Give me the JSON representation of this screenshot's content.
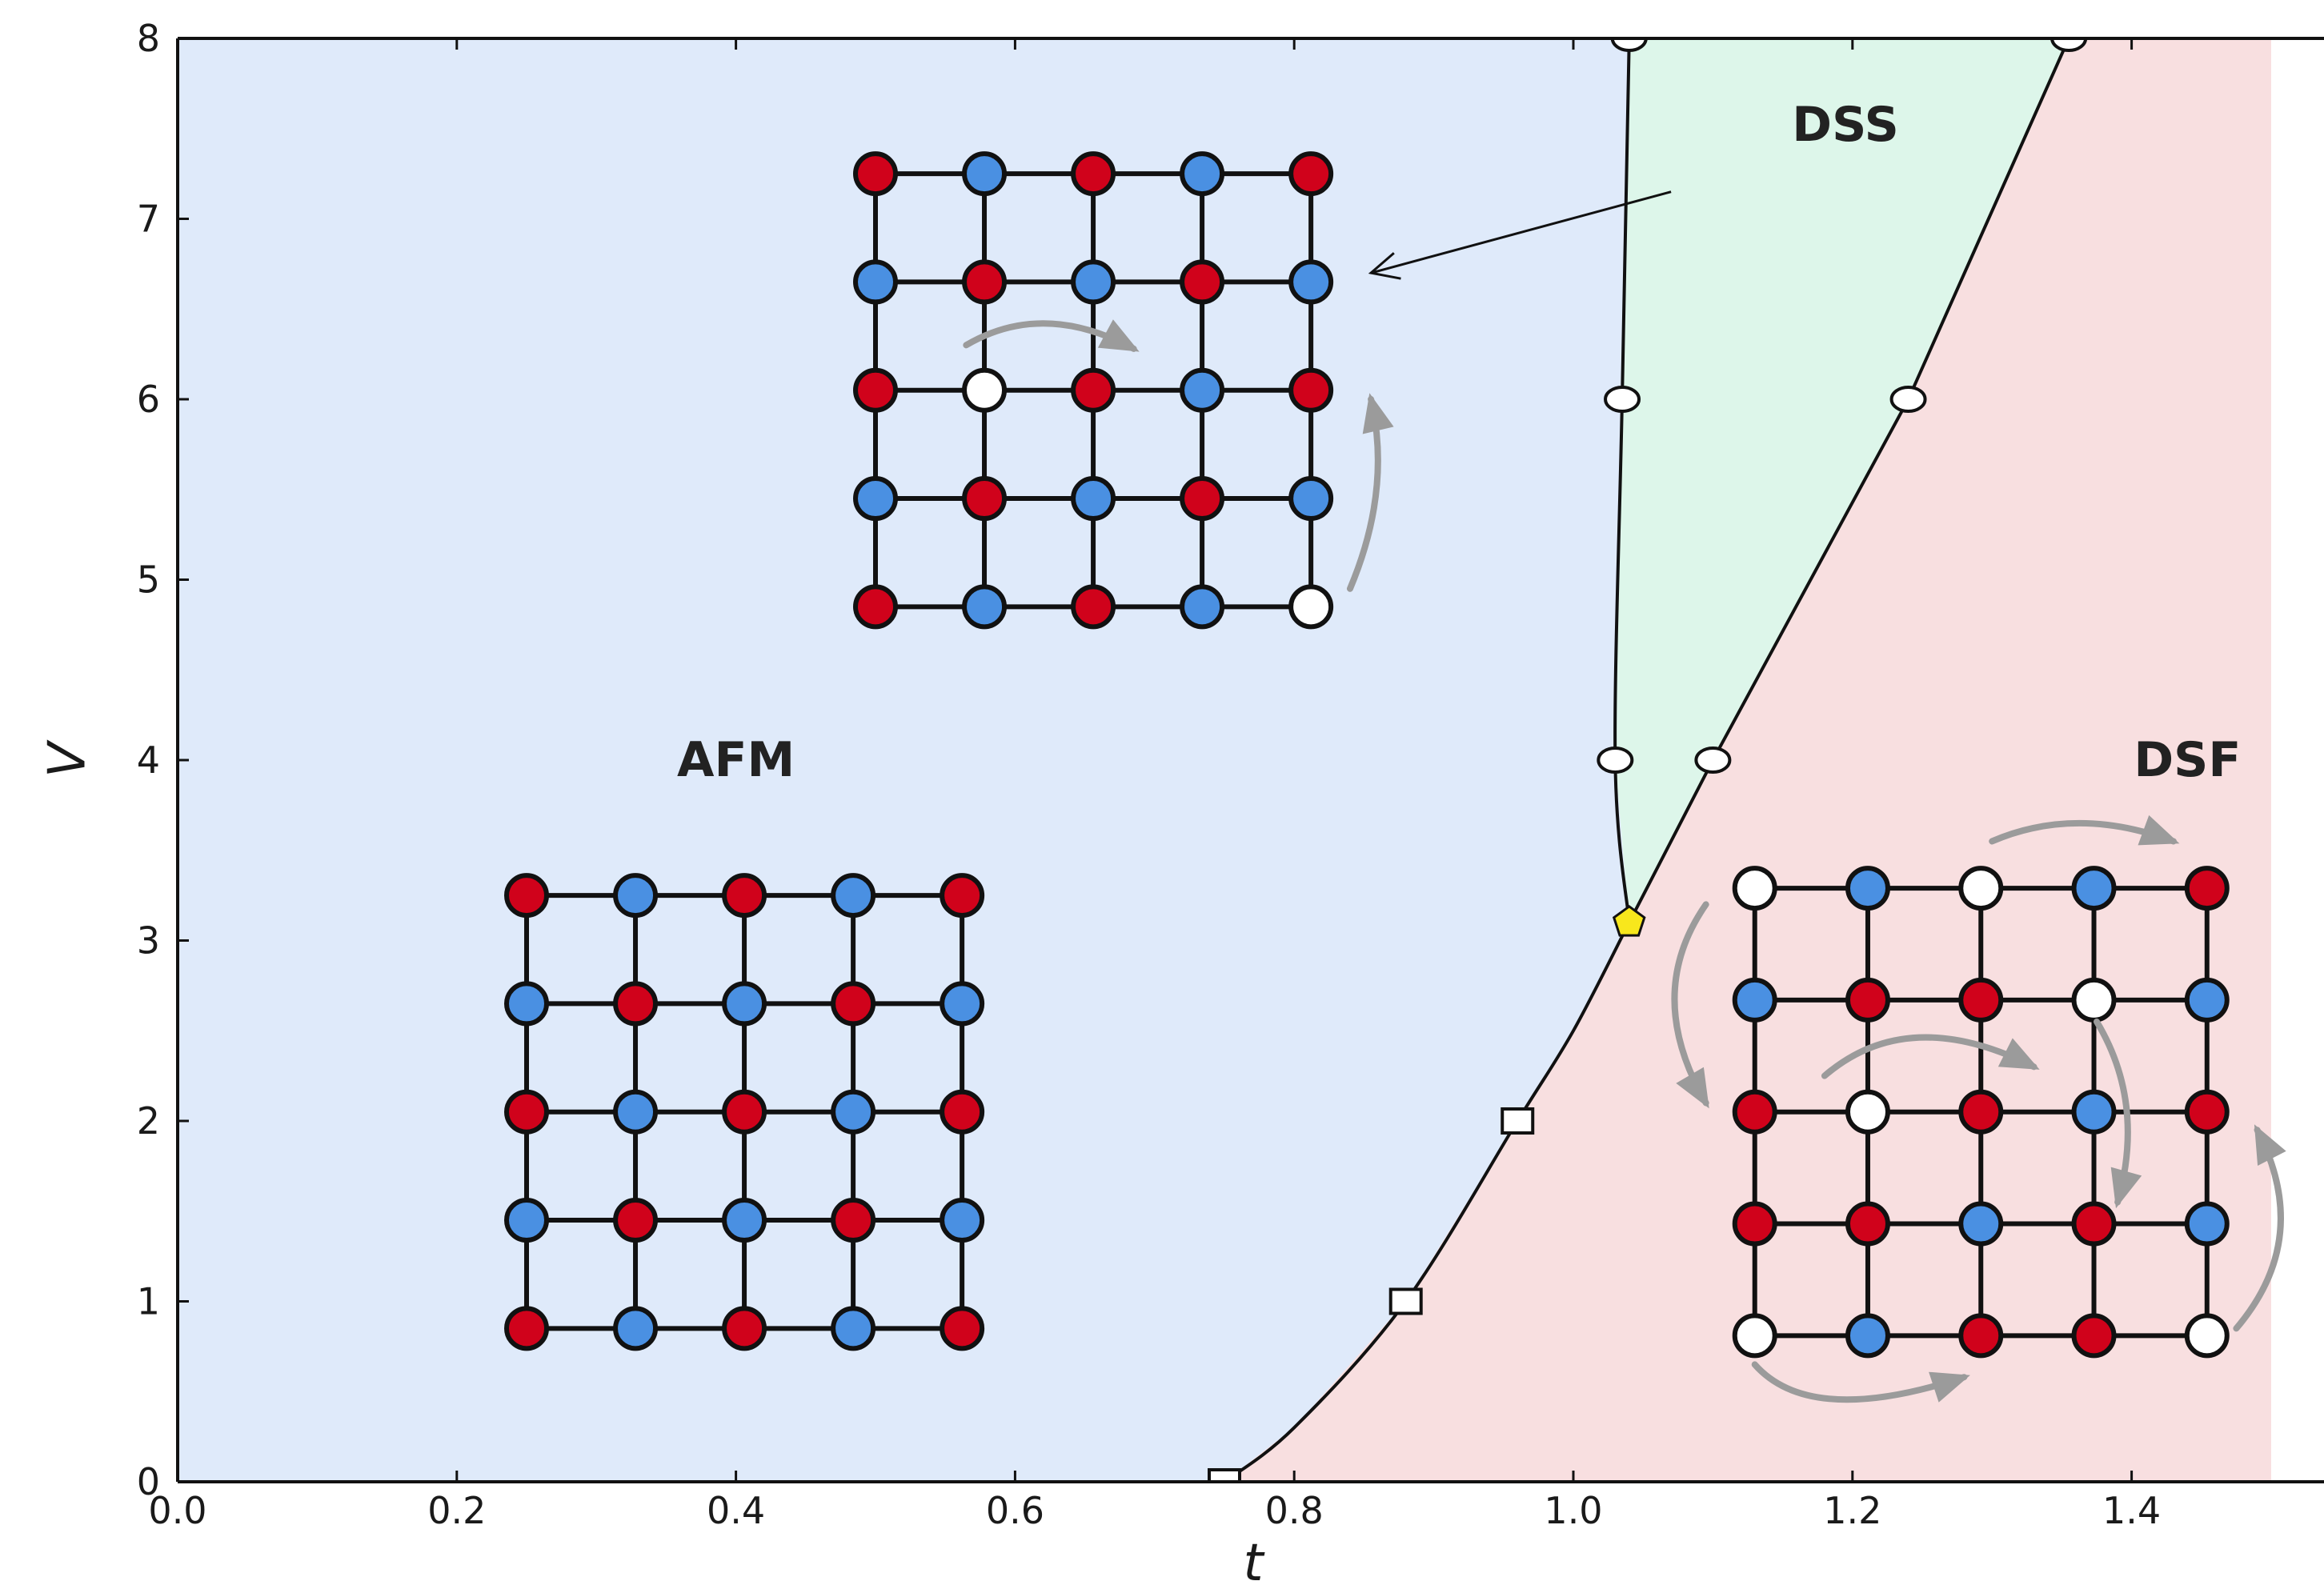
{
  "chart_data": {
    "type": "line",
    "title": "",
    "xlabel": "t",
    "ylabel": "V",
    "xlim": [
      0.0,
      1.5
    ],
    "ylim": [
      0,
      8
    ],
    "x_ticks": [
      "0.0",
      "0.2",
      "0.4",
      "0.6",
      "0.8",
      "1.0",
      "1.2",
      "1.4"
    ],
    "y_ticks": [
      "0",
      "1",
      "2",
      "3",
      "4",
      "5",
      "6",
      "7",
      "8"
    ],
    "grid": false,
    "colors": {
      "afm_region": "#dfeafa",
      "dss_region": "#ddf6ea",
      "dsf_region": "#f8dfe0",
      "red_site": "#d0021b",
      "blue_site": "#4a90e2",
      "empty_site": "#ffffff",
      "arrow": "#9b9b9b",
      "tricritical": "#f8e71c"
    },
    "regions": [
      {
        "label": "AFM",
        "label_at": [
          0.4,
          4.0
        ]
      },
      {
        "label": "DSS",
        "label_at": [
          1.195,
          7.52
        ]
      },
      {
        "label": "DSF",
        "label_at": [
          1.44,
          4.0
        ]
      }
    ],
    "boundaries": {
      "afm_dsf": [
        [
          0.75,
          0.0
        ],
        [
          0.8,
          0.3
        ],
        [
          0.88,
          1.0
        ],
        [
          0.96,
          2.0
        ],
        [
          1.0,
          2.5
        ],
        [
          1.04,
          3.1
        ]
      ],
      "afm_dss": [
        [
          1.04,
          3.1
        ],
        [
          1.03,
          4.0
        ],
        [
          1.035,
          6.0
        ],
        [
          1.04,
          8.0
        ]
      ],
      "dss_dsf": [
        [
          1.04,
          3.1
        ],
        [
          1.1,
          4.0
        ],
        [
          1.24,
          6.0
        ],
        [
          1.355,
          8.0
        ]
      ]
    },
    "markers": {
      "squares": [
        [
          0.75,
          0.0
        ],
        [
          0.88,
          1.0
        ],
        [
          0.96,
          2.0
        ]
      ],
      "circles": [
        [
          1.03,
          4.0
        ],
        [
          1.1,
          4.0
        ],
        [
          1.035,
          6.0
        ],
        [
          1.24,
          6.0
        ],
        [
          1.04,
          8.0
        ],
        [
          1.355,
          8.0
        ]
      ],
      "tricritical": [
        1.04,
        3.1
      ]
    },
    "lattices": [
      {
        "name": "afm",
        "x0": 0.25,
        "dx": 0.078,
        "y_top": 3.25,
        "dy": 0.6,
        "rows": [
          [
            "R",
            "B",
            "R",
            "B",
            "R"
          ],
          [
            "B",
            "R",
            "B",
            "R",
            "B"
          ],
          [
            "R",
            "B",
            "R",
            "B",
            "R"
          ],
          [
            "B",
            "R",
            "B",
            "R",
            "B"
          ],
          [
            "R",
            "B",
            "R",
            "B",
            "R"
          ]
        ]
      },
      {
        "name": "dss",
        "x0": 0.5,
        "dx": 0.078,
        "y_top": 7.25,
        "dy": 0.6,
        "rows": [
          [
            "R",
            "B",
            "R",
            "B",
            "R"
          ],
          [
            "B",
            "R",
            "B",
            "R",
            "B"
          ],
          [
            "R",
            "W",
            "R",
            "B",
            "R"
          ],
          [
            "B",
            "R",
            "B",
            "R",
            "B"
          ],
          [
            "R",
            "B",
            "R",
            "B",
            "W"
          ]
        ]
      },
      {
        "name": "dsf",
        "x0": 1.13,
        "dx": 0.081,
        "y_top": 3.29,
        "dy": 0.62,
        "rows": [
          [
            "W",
            "B",
            "W",
            "B",
            "R"
          ],
          [
            "B",
            "R",
            "R",
            "W",
            "B"
          ],
          [
            "R",
            "W",
            "R",
            "B",
            "R"
          ],
          [
            "R",
            "R",
            "B",
            "R",
            "B"
          ],
          [
            "W",
            "B",
            "R",
            "R",
            "W"
          ]
        ]
      }
    ],
    "hop_arrows": [
      {
        "from": [
          0.565,
          6.3
        ],
        "ctrl": [
          0.62,
          6.55
        ],
        "to": [
          0.685,
          6.28
        ]
      },
      {
        "from": [
          0.84,
          4.95
        ],
        "ctrl": [
          0.87,
          5.5
        ],
        "to": [
          0.855,
          6.0
        ]
      },
      {
        "from": [
          1.3,
          3.55
        ],
        "ctrl": [
          1.36,
          3.75
        ],
        "to": [
          1.43,
          3.55
        ]
      },
      {
        "from": [
          1.095,
          3.2
        ],
        "ctrl": [
          1.05,
          2.7
        ],
        "to": [
          1.095,
          2.1
        ]
      },
      {
        "from": [
          1.18,
          2.25
        ],
        "ctrl": [
          1.24,
          2.65
        ],
        "to": [
          1.33,
          2.3
        ]
      },
      {
        "from": [
          1.375,
          2.55
        ],
        "ctrl": [
          1.41,
          2.1
        ],
        "to": [
          1.39,
          1.55
        ]
      },
      {
        "from": [
          1.475,
          0.85
        ],
        "ctrl": [
          1.53,
          1.35
        ],
        "to": [
          1.49,
          1.95
        ]
      },
      {
        "from": [
          1.13,
          0.65
        ],
        "ctrl": [
          1.17,
          0.3
        ],
        "to": [
          1.28,
          0.58
        ]
      }
    ],
    "annotation_arrow": {
      "from": [
        1.07,
        7.15
      ],
      "to": [
        0.855,
        6.7
      ]
    }
  }
}
